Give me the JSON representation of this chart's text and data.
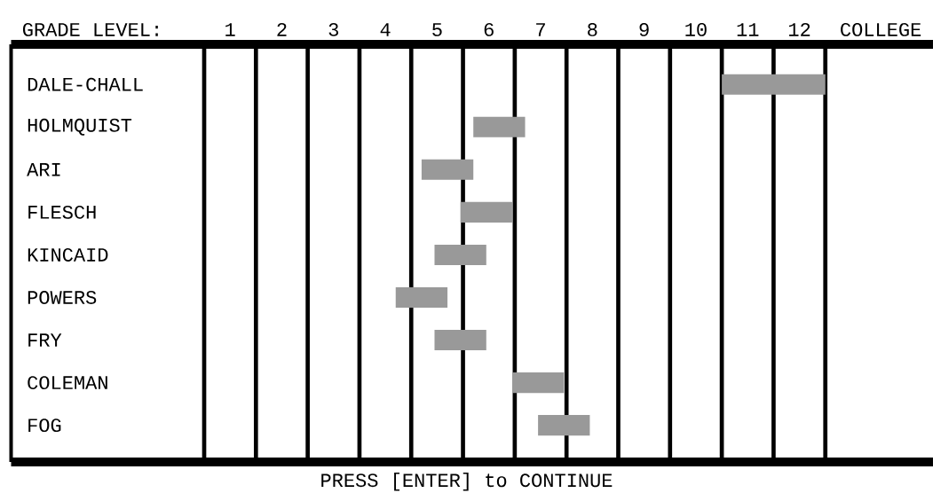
{
  "chart_data": {
    "type": "bar",
    "orientation": "horizontal",
    "xlabel": "GRADE LEVEL:",
    "categories": [
      "DALE-CHALL",
      "HOLMQUIST",
      "ARI",
      "FLESCH",
      "KINCAID",
      "POWERS",
      "FRY",
      "COLEMAN",
      "FOG"
    ],
    "base": [
      10.5,
      5.7,
      4.7,
      5.45,
      4.95,
      4.2,
      4.95,
      6.45,
      6.95
    ],
    "values": [
      2,
      1,
      1,
      1,
      1,
      1,
      1,
      1,
      1
    ],
    "color": "#999999",
    "xlim": [
      -3.23,
      14.58
    ],
    "xticks": [
      1,
      2,
      3,
      4,
      5,
      6,
      7,
      8,
      9,
      10,
      11,
      12,
      {
        "value": 13.57,
        "label": "COLLEGE"
      }
    ],
    "ref_lines": [
      {
        "axis": "x",
        "value": 0.5,
        "color": "#000000"
      },
      {
        "axis": "x",
        "value": 1.5,
        "color": "#000000"
      },
      {
        "axis": "x",
        "value": 2.5,
        "color": "#000000"
      },
      {
        "axis": "x",
        "value": 3.5,
        "color": "#000000"
      },
      {
        "axis": "x",
        "value": 4.5,
        "color": "#000000"
      },
      {
        "axis": "x",
        "value": 5.5,
        "color": "#000000"
      },
      {
        "axis": "x",
        "value": 6.5,
        "color": "#000000"
      },
      {
        "axis": "x",
        "value": 7.5,
        "color": "#000000"
      },
      {
        "axis": "x",
        "value": 8.5,
        "color": "#000000"
      },
      {
        "axis": "x",
        "value": 9.5,
        "color": "#000000"
      },
      {
        "axis": "x",
        "value": 10.5,
        "color": "#000000"
      },
      {
        "axis": "x",
        "value": 11.5,
        "color": "#000000"
      },
      {
        "axis": "x",
        "value": 12.5,
        "color": "#000000"
      }
    ],
    "annotations": [
      "PRESS [ENTER] to CONTINUE"
    ]
  }
}
